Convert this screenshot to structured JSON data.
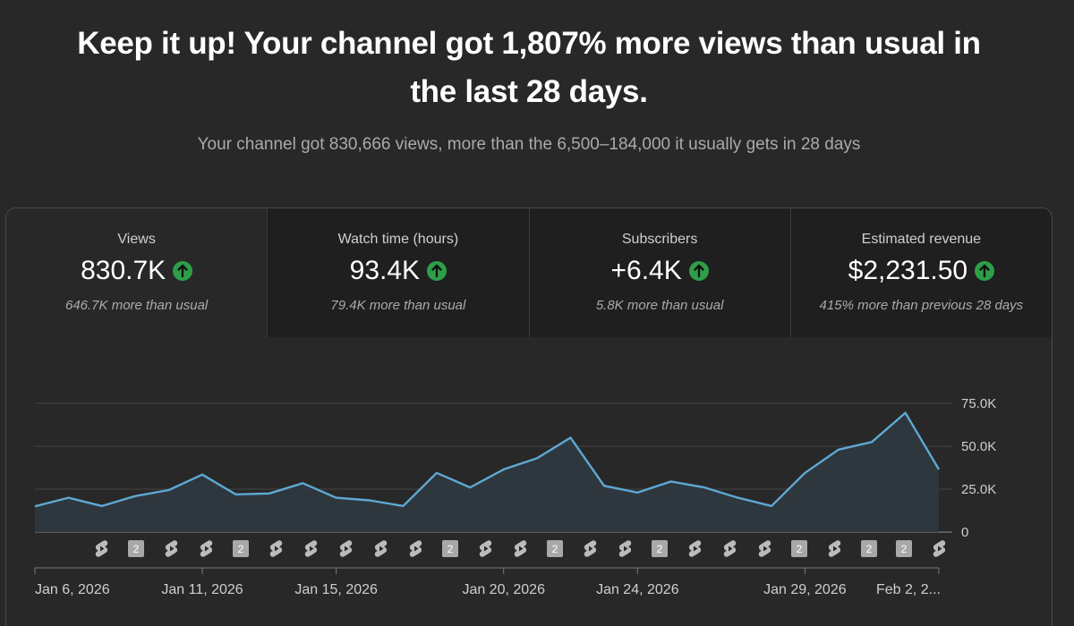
{
  "headline": "Keep it up! Your channel got 1,807% more views than usual in the last 28 days.",
  "subline": "Your channel got 830,666 views, more than the 6,500–184,000 it usually gets in 28 days",
  "colors": {
    "background": "#282828",
    "line": "#5fa8d3",
    "area_fill": "#2f3940",
    "up_badge": "#2e9e48",
    "short_marker": "#bbbbbb",
    "video_marker": "#a8a8a8"
  },
  "metrics": [
    {
      "label": "Views",
      "value": "830.7K",
      "trend_icon": "arrow-up-circle-icon",
      "sub": "646.7K more than usual",
      "selected": true
    },
    {
      "label": "Watch time (hours)",
      "value": "93.4K",
      "trend_icon": "arrow-up-circle-icon",
      "sub": "79.4K more than usual",
      "selected": false
    },
    {
      "label": "Subscribers",
      "value": "+6.4K",
      "trend_icon": "arrow-up-circle-icon",
      "sub": "5.8K more than usual",
      "selected": false
    },
    {
      "label": "Estimated revenue",
      "value": "$2,231.50",
      "trend_icon": "arrow-up-circle-icon",
      "sub": "415% more than previous 28 days",
      "selected": false
    }
  ],
  "chart_data": {
    "type": "area",
    "series": [
      {
        "values": [
          15000,
          20000,
          15200,
          21000,
          24500,
          33500,
          22000,
          22500,
          28500,
          20000,
          18500,
          15200,
          34500,
          26000,
          36500,
          43000,
          55000,
          27000,
          23000,
          29500,
          26000,
          20000,
          15200,
          34500,
          48000,
          52500,
          69500,
          36500
        ]
      }
    ],
    "yticks": [
      "75.0K",
      "50.0K",
      "25.0K",
      "0"
    ],
    "ylim": [
      0,
      75000
    ],
    "xticks": [
      "Jan 6, 2026",
      "Jan 11, 2026",
      "Jan 15, 2026",
      "Jan 20, 2026",
      "Jan 24, 2026",
      "Jan 29, 2026",
      "Feb 2, 2..."
    ],
    "xtick_day_index": [
      1,
      6,
      10,
      15,
      19,
      24,
      28
    ],
    "grid": true,
    "markers": [
      {
        "kind": "short",
        "icon": "shorts-icon"
      },
      {
        "kind": "video",
        "label": "2"
      },
      {
        "kind": "short",
        "icon": "shorts-icon"
      },
      {
        "kind": "short",
        "icon": "shorts-icon"
      },
      {
        "kind": "video",
        "label": "2"
      },
      {
        "kind": "short",
        "icon": "shorts-icon"
      },
      {
        "kind": "short",
        "icon": "shorts-icon"
      },
      {
        "kind": "short",
        "icon": "shorts-icon"
      },
      {
        "kind": "short",
        "icon": "shorts-icon"
      },
      {
        "kind": "short",
        "icon": "shorts-icon"
      },
      {
        "kind": "video",
        "label": "2"
      },
      {
        "kind": "short",
        "icon": "shorts-icon"
      },
      {
        "kind": "short",
        "icon": "shorts-icon"
      },
      {
        "kind": "video",
        "label": "2"
      },
      {
        "kind": "short",
        "icon": "shorts-icon"
      },
      {
        "kind": "short",
        "icon": "shorts-icon"
      },
      {
        "kind": "video",
        "label": "2"
      },
      {
        "kind": "short",
        "icon": "shorts-icon"
      },
      {
        "kind": "short",
        "icon": "shorts-icon"
      },
      {
        "kind": "short",
        "icon": "shorts-icon"
      },
      {
        "kind": "video",
        "label": "2"
      },
      {
        "kind": "short",
        "icon": "shorts-icon"
      },
      {
        "kind": "video",
        "label": "2"
      },
      {
        "kind": "video",
        "label": "2"
      },
      {
        "kind": "short",
        "icon": "shorts-icon"
      }
    ]
  }
}
